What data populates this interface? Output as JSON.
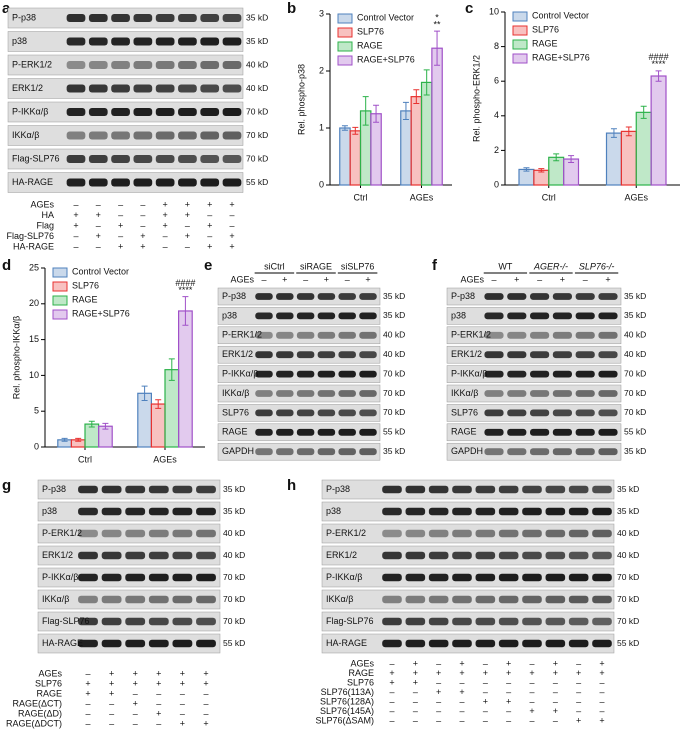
{
  "panel_labels": [
    "a",
    "b",
    "c",
    "d",
    "e",
    "f",
    "g",
    "h"
  ],
  "chart_data": [
    {
      "type": "bar",
      "ylabel": "Rel. phospho-p38",
      "categories": [
        "Ctrl",
        "AGEs"
      ],
      "ylim": [
        0,
        3
      ],
      "yticks": [
        0,
        1,
        2,
        3
      ],
      "legend": "upper left",
      "series": [
        {
          "name": "Control Vector",
          "color": "#4f81bd",
          "values": [
            1.0,
            1.3
          ],
          "errors": [
            0.04,
            0.15
          ]
        },
        {
          "name": "SLP76",
          "color": "#e8312f",
          "values": [
            0.95,
            1.55
          ],
          "errors": [
            0.06,
            0.12
          ]
        },
        {
          "name": "RAGE",
          "color": "#2cb24a",
          "values": [
            1.3,
            1.8
          ],
          "errors": [
            0.25,
            0.22
          ]
        },
        {
          "name": "RAGE+SLP76",
          "color": "#a050c8",
          "values": [
            1.25,
            2.4
          ],
          "errors": [
            0.15,
            0.3
          ]
        }
      ],
      "annotations": [
        "**",
        "*"
      ]
    },
    {
      "type": "bar",
      "ylabel": "Rel. phospho-ERK1/2",
      "categories": [
        "Ctrl",
        "AGEs"
      ],
      "ylim": [
        0,
        10
      ],
      "yticks": [
        0,
        2,
        4,
        6,
        8,
        10
      ],
      "legend": "upper left",
      "series": [
        {
          "name": "Control Vector",
          "color": "#4f81bd",
          "values": [
            0.9,
            3.0
          ],
          "errors": [
            0.1,
            0.25
          ]
        },
        {
          "name": "SLP76",
          "color": "#e8312f",
          "values": [
            0.85,
            3.1
          ],
          "errors": [
            0.1,
            0.25
          ]
        },
        {
          "name": "RAGE",
          "color": "#2cb24a",
          "values": [
            1.6,
            4.2
          ],
          "errors": [
            0.2,
            0.35
          ]
        },
        {
          "name": "RAGE+SLP76",
          "color": "#a050c8",
          "values": [
            1.5,
            6.3
          ],
          "errors": [
            0.2,
            0.3
          ]
        }
      ],
      "annotations": [
        "****",
        "####"
      ]
    },
    {
      "type": "bar",
      "ylabel": "Rel. phospho-IKKα/β",
      "categories": [
        "Ctrl",
        "AGEs"
      ],
      "ylim": [
        0,
        25
      ],
      "yticks": [
        0,
        5,
        10,
        15,
        20,
        25
      ],
      "legend": "upper left",
      "series": [
        {
          "name": "Control Vector",
          "color": "#4f81bd",
          "values": [
            1.0,
            7.5
          ],
          "errors": [
            0.2,
            1.0
          ]
        },
        {
          "name": "SLP76",
          "color": "#e8312f",
          "values": [
            1.0,
            6.0
          ],
          "errors": [
            0.2,
            0.6
          ]
        },
        {
          "name": "RAGE",
          "color": "#2cb24a",
          "values": [
            3.2,
            10.8
          ],
          "errors": [
            0.4,
            1.5
          ]
        },
        {
          "name": "RAGE+SLP76",
          "color": "#a050c8",
          "values": [
            2.9,
            19.0
          ],
          "errors": [
            0.4,
            2.0
          ]
        }
      ],
      "annotations": [
        "****",
        "####"
      ]
    }
  ],
  "blot_a": {
    "rows": [
      "P-p38",
      "p38",
      "P-ERK1/2",
      "ERK1/2",
      "P-IKKα/β",
      "IKKα/β",
      "Flag-SLP76",
      "HA-RAGE"
    ],
    "sizes": [
      "35 kD",
      "35 kD",
      "40 kD",
      "40 kD",
      "70 kD",
      "70 kD",
      "70 kD",
      "55 kD"
    ],
    "treatments": [
      {
        "label": "AGEs",
        "signs": [
          "–",
          "–",
          "–",
          "–",
          "+",
          "+",
          "+",
          "+"
        ]
      },
      {
        "label": "HA",
        "signs": [
          "+",
          "+",
          "–",
          "–",
          "+",
          "+",
          "–",
          "–"
        ]
      },
      {
        "label": "Flag",
        "signs": [
          "+",
          "–",
          "+",
          "–",
          "+",
          "–",
          "+",
          "–"
        ]
      },
      {
        "label": "Flag-SLP76",
        "signs": [
          "–",
          "+",
          "–",
          "+",
          "–",
          "+",
          "–",
          "+"
        ]
      },
      {
        "label": "HA-RAGE",
        "signs": [
          "–",
          "–",
          "+",
          "+",
          "–",
          "–",
          "+",
          "+"
        ]
      }
    ]
  },
  "blot_e": {
    "groups": [
      "siCtrl",
      "siRAGE",
      "siSLP76"
    ],
    "treatment": {
      "label": "AGEs",
      "signs": [
        "–",
        "+",
        "–",
        "+",
        "–",
        "+"
      ]
    },
    "rows": [
      "P-p38",
      "p38",
      "P-ERK1/2",
      "ERK1/2",
      "P-IKKα/β",
      "IKKα/β",
      "SLP76",
      "RAGE",
      "GAPDH"
    ],
    "sizes": [
      "35 kD",
      "35 kD",
      "40 kD",
      "40 kD",
      "70 kD",
      "70 kD",
      "70 kD",
      "55 kD",
      "35 kD"
    ]
  },
  "blot_f": {
    "groups": [
      "WT",
      "AGER-/-",
      "SLP76-/-"
    ],
    "treatment": {
      "label": "AGEs",
      "signs": [
        "–",
        "+",
        "–",
        "+",
        "–",
        "+"
      ]
    },
    "rows": [
      "P-p38",
      "p38",
      "P-ERK1/2",
      "ERK1/2",
      "P-IKKα/β",
      "IKKα/β",
      "SLP76",
      "RAGE",
      "GAPDH"
    ],
    "sizes": [
      "35 kD",
      "35 kD",
      "40 kD",
      "40 kD",
      "70 kD",
      "70 kD",
      "70 kD",
      "55 kD",
      "35 kD"
    ]
  },
  "blot_g": {
    "rows": [
      "P-p38",
      "p38",
      "P-ERK1/2",
      "ERK1/2",
      "P-IKKα/β",
      "IKKα/β",
      "Flag-SLP76",
      "HA-RAGE"
    ],
    "sizes": [
      "35 kD",
      "35 kD",
      "40 kD",
      "40 kD",
      "70 kD",
      "70 kD",
      "70 kD",
      "55 kD"
    ],
    "treatments": [
      {
        "label": "AGEs",
        "signs": [
          "–",
          "+",
          "+",
          "+",
          "+",
          "+"
        ]
      },
      {
        "label": "SLP76",
        "signs": [
          "+",
          "+",
          "+",
          "+",
          "+",
          "+"
        ]
      },
      {
        "label": "RAGE",
        "signs": [
          "+",
          "+",
          "–",
          "–",
          "–",
          "–"
        ]
      },
      {
        "label": "RAGE(ΔCT)",
        "signs": [
          "–",
          "–",
          "+",
          "–",
          "–",
          "–"
        ]
      },
      {
        "label": "RAGE(ΔD)",
        "signs": [
          "–",
          "–",
          "–",
          "+",
          "–",
          "–"
        ]
      },
      {
        "label": "RAGE(ΔDCT)",
        "signs": [
          "–",
          "–",
          "–",
          "–",
          "+",
          "+"
        ]
      }
    ]
  },
  "blot_h": {
    "rows": [
      "P-p38",
      "p38",
      "P-ERK1/2",
      "ERK1/2",
      "P-IKKα/β",
      "IKKα/β",
      "Flag-SLP76",
      "HA-RAGE"
    ],
    "sizes": [
      "35 kD",
      "35 kD",
      "40 kD",
      "40 kD",
      "70 kD",
      "70 kD",
      "70 kD",
      "55 kD"
    ],
    "treatments": [
      {
        "label": "AGEs",
        "signs": [
          "–",
          "+",
          "–",
          "+",
          "–",
          "+",
          "–",
          "+",
          "–",
          "+"
        ]
      },
      {
        "label": "RAGE",
        "signs": [
          "+",
          "+",
          "+",
          "+",
          "+",
          "+",
          "+",
          "+",
          "+",
          "+"
        ]
      },
      {
        "label": "SLP76",
        "signs": [
          "+",
          "+",
          "–",
          "–",
          "–",
          "–",
          "–",
          "–",
          "–",
          "–"
        ]
      },
      {
        "label": "SLP76(113A)",
        "signs": [
          "–",
          "–",
          "+",
          "+",
          "–",
          "–",
          "–",
          "–",
          "–",
          "–"
        ]
      },
      {
        "label": "SLP76(128A)",
        "signs": [
          "–",
          "–",
          "–",
          "–",
          "+",
          "+",
          "–",
          "–",
          "–",
          "–"
        ]
      },
      {
        "label": "SLP76(145A)",
        "signs": [
          "–",
          "–",
          "–",
          "–",
          "–",
          "–",
          "+",
          "+",
          "–",
          "–"
        ]
      },
      {
        "label": "SLP76(ΔSAM)",
        "signs": [
          "–",
          "–",
          "–",
          "–",
          "–",
          "–",
          "–",
          "–",
          "+",
          "+"
        ]
      }
    ]
  }
}
